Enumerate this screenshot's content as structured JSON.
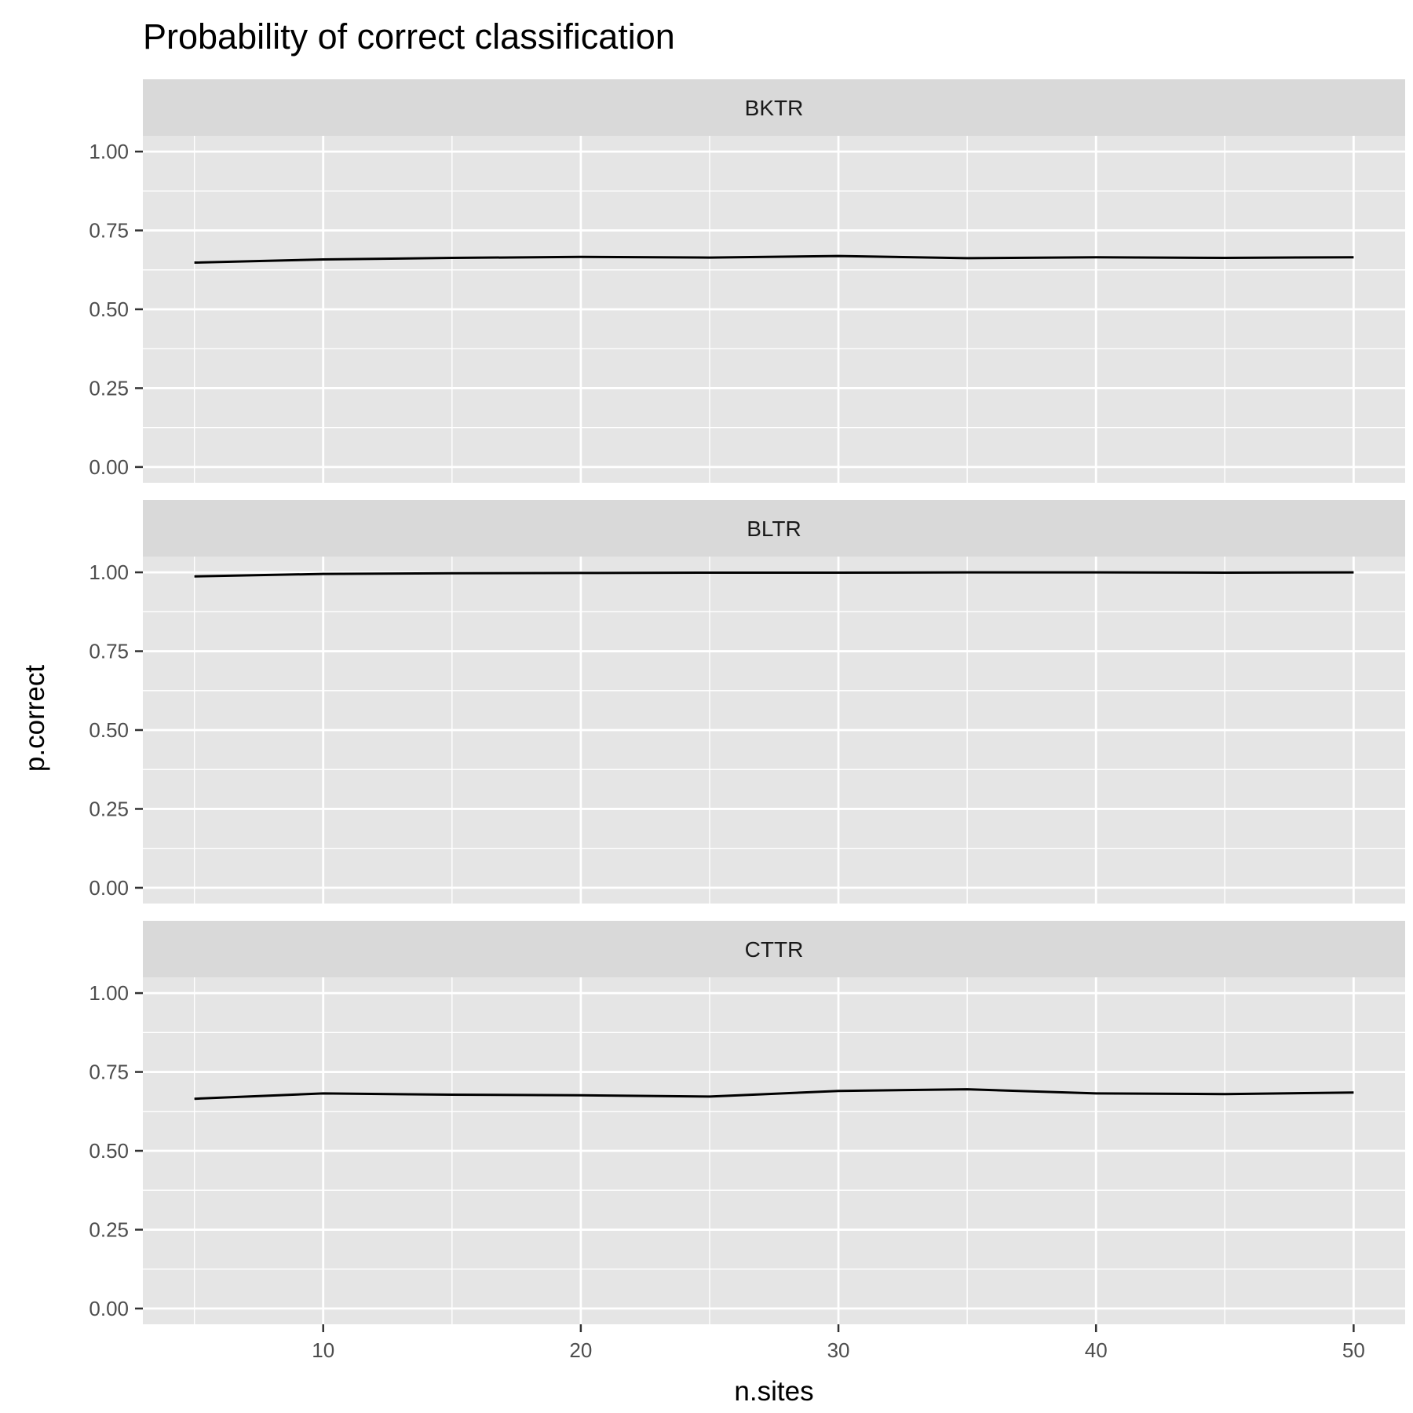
{
  "chart_data": {
    "type": "line",
    "title": "Probability of correct classification",
    "xlabel": "n.sites",
    "ylabel": "p.correct",
    "xlim": [
      3,
      52
    ],
    "ylim": [
      -0.05,
      1.05
    ],
    "x_ticks": [
      10,
      20,
      30,
      40,
      50
    ],
    "x_tick_labels": [
      "10",
      "20",
      "30",
      "40",
      "50"
    ],
    "y_ticks": [
      0,
      0.25,
      0.5,
      0.75,
      1
    ],
    "y_tick_labels": [
      "0.00",
      "0.25",
      "0.50",
      "0.75",
      "1.00"
    ],
    "grid": true,
    "x": [
      5,
      10,
      15,
      20,
      25,
      30,
      35,
      40,
      45,
      50
    ],
    "facets": [
      {
        "name": "BKTR",
        "values": [
          0.648,
          0.658,
          0.663,
          0.666,
          0.664,
          0.669,
          0.662,
          0.665,
          0.663,
          0.665
        ]
      },
      {
        "name": "BLTR",
        "values": [
          0.987,
          0.995,
          0.997,
          0.998,
          0.999,
          0.999,
          1.0,
          1.0,
          0.999,
          1.0
        ]
      },
      {
        "name": "CTTR",
        "values": [
          0.665,
          0.682,
          0.678,
          0.676,
          0.672,
          0.69,
          0.695,
          0.682,
          0.68,
          0.685
        ]
      }
    ],
    "colors": {
      "panel": "#e5e5e5",
      "strip": "#d9d9d9",
      "grid": "#ffffff",
      "line": "#000000",
      "axis_text": "#4d4d4d"
    }
  }
}
